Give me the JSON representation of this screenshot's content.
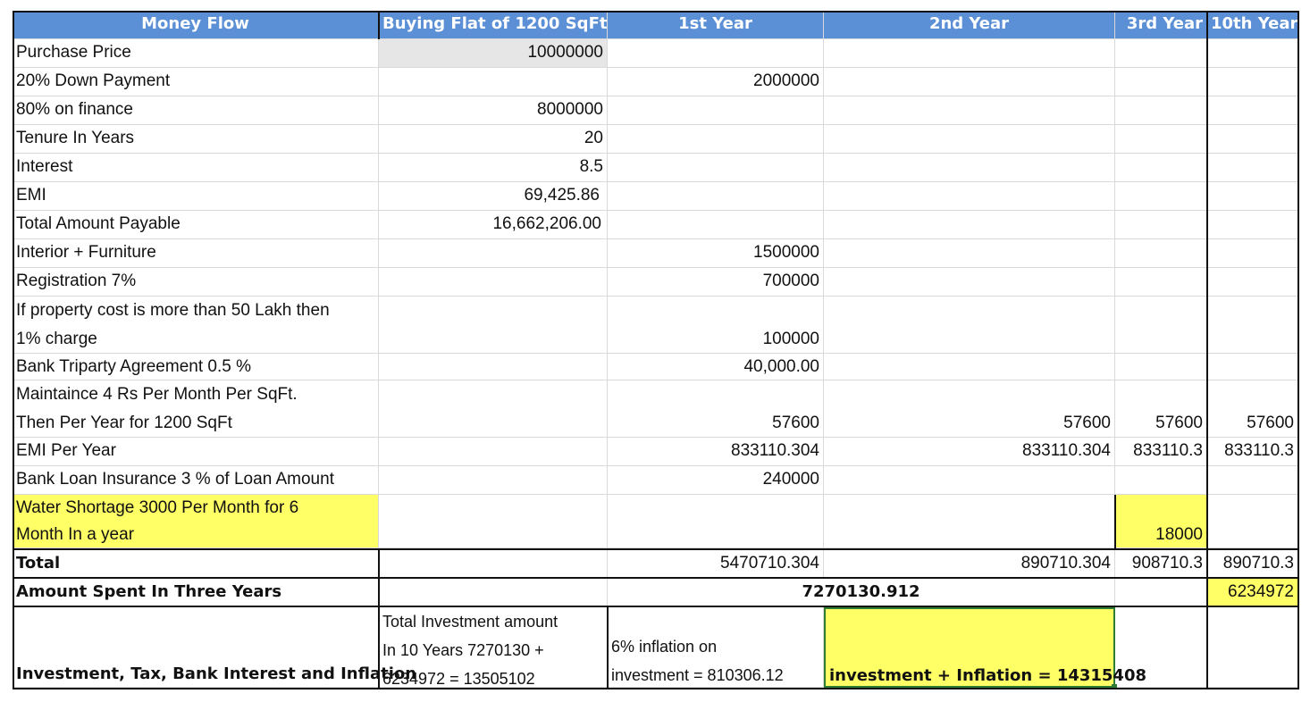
{
  "headers": {
    "money_flow": "Money Flow",
    "buying": "Buying Flat of 1200 SqFt",
    "y1": "1st Year",
    "y2": "2nd Year",
    "y3": "3rd Year",
    "y10": "10th Year"
  },
  "rows": {
    "purchase_price": {
      "label": "Purchase Price",
      "buy": "10000000"
    },
    "down_payment": {
      "label": "20% Down Payment",
      "y1": "2000000"
    },
    "finance": {
      "label": "80% on finance",
      "buy": "8000000"
    },
    "tenure": {
      "label": "Tenure In Years",
      "buy": "20"
    },
    "interest": {
      "label": "Interest",
      "buy": "8.5"
    },
    "emi": {
      "label": "EMI",
      "buy": "69,425.86"
    },
    "total_payable": {
      "label": "Total Amount Payable",
      "buy": "16,662,206.00"
    },
    "interior": {
      "label": "Interior + Furniture",
      "y1": "1500000"
    },
    "registration": {
      "label": "Registration 7%",
      "y1": "700000"
    },
    "property_charge": {
      "label_line1": "If property cost is more than 50 Lakh then",
      "label_line2": "1% charge",
      "y1": "100000"
    },
    "triparty": {
      "label": "Bank Triparty Agreement 0.5 %",
      "y1": "40,000.00"
    },
    "maintenance": {
      "label_line1": "Maintaince 4 Rs Per Month Per SqFt.",
      "label_line2": "Then Per Year for 1200 SqFt",
      "y1": "57600",
      "y2": "57600",
      "y3": "57600",
      "y10": "57600"
    },
    "emi_year": {
      "label": "EMI Per Year",
      "y1": "833110.304",
      "y2": "833110.304",
      "y3": "833110.3",
      "y10": "833110.3"
    },
    "insurance": {
      "label": "Bank Loan Insurance 3 % of Loan Amount",
      "y1": "240000"
    },
    "water": {
      "label_line1": "Water Shortage 3000 Per Month for 6",
      "label_line2": "Month In a year",
      "y3": "18000"
    },
    "total": {
      "label": "Total",
      "y1": "5470710.304",
      "y2": "890710.304",
      "y3": "908710.3",
      "y10": "890710.3"
    },
    "three_years": {
      "label": "Amount Spent In Three Years",
      "y1": "7270130.912",
      "y10": "6234972"
    },
    "investment": {
      "label": "Investment, Tax, Bank Interest and Inflation",
      "buy_line1": "Total Investment amount",
      "buy_line2": "In 10 Years 7270130 +",
      "buy_line3": "6234972 = 13505102",
      "y1_line1": "6% inflation on",
      "y1_line2": "investment = 810306.12",
      "y2": "investment + Inflation = 14315408"
    }
  },
  "colors": {
    "header_bg": "#5b8fd6",
    "highlight_yellow": "#ffff66",
    "grey_fill": "#e6e6e6",
    "grid": "#d9d9d9"
  }
}
